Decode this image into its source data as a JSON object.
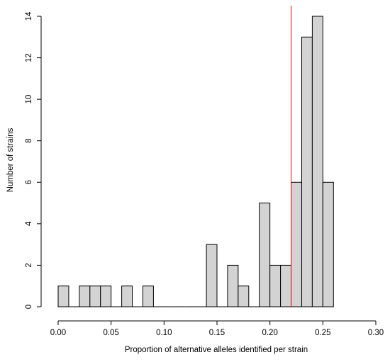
{
  "chart_data": {
    "type": "bar",
    "subtype": "histogram",
    "xlabel": "Proportion of alternative alleles identified per strain",
    "ylabel": "Number of strains",
    "xlim": [
      0.0,
      0.3
    ],
    "ylim": [
      0,
      14
    ],
    "xticks": [
      0.0,
      0.05,
      0.1,
      0.15,
      0.2,
      0.25,
      0.3
    ],
    "xtick_labels": [
      "0.00",
      "0.05",
      "0.10",
      "0.15",
      "0.20",
      "0.25",
      "0.30"
    ],
    "yticks": [
      0,
      2,
      4,
      6,
      8,
      10,
      12,
      14
    ],
    "ytick_labels": [
      "0",
      "2",
      "4",
      "6",
      "8",
      "10",
      "12",
      "14"
    ],
    "bin_start": 0.0,
    "bin_width": 0.01,
    "values": [
      1,
      0,
      1,
      1,
      1,
      0,
      1,
      0,
      1,
      0,
      0,
      0,
      0,
      0,
      3,
      0,
      2,
      1,
      0,
      5,
      2,
      2,
      6,
      13,
      14,
      6
    ],
    "bar_fill": "#d3d3d3",
    "bar_stroke": "#000000",
    "reference_line": {
      "x": 0.22,
      "color": "#ff0000"
    },
    "grid": false,
    "legend": "none"
  }
}
